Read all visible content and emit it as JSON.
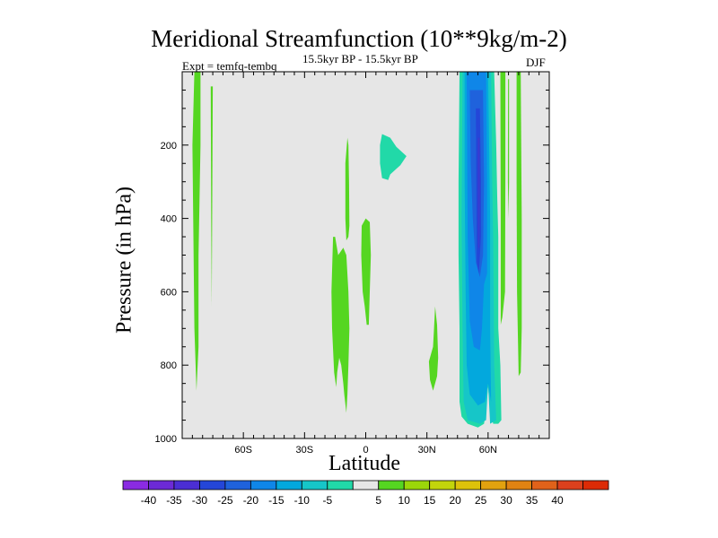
{
  "chart_data": {
    "type": "heatmap",
    "title": "Meridional Streamfunction (10**9kg/m-2)",
    "subtitle_left": "Expt = temfq-tembq",
    "subtitle_center": "15.5kyr BP - 15.5kyr BP",
    "subtitle_right": "DJF",
    "xlabel": "Latitude",
    "ylabel": "Pressure (in hPa)",
    "xlim": [
      -90,
      90
    ],
    "ylim": [
      1000,
      0
    ],
    "x_ticks": [
      {
        "value": -60,
        "label": "60S"
      },
      {
        "value": -30,
        "label": "30S"
      },
      {
        "value": 0,
        "label": "0"
      },
      {
        "value": 30,
        "label": "30N"
      },
      {
        "value": 60,
        "label": "60N"
      }
    ],
    "y_ticks": [
      {
        "value": 200,
        "label": "200"
      },
      {
        "value": 400,
        "label": "400"
      },
      {
        "value": 600,
        "label": "600"
      },
      {
        "value": 800,
        "label": "800"
      },
      {
        "value": 1000,
        "label": "1000"
      }
    ],
    "background_level": "-5 to 5",
    "contour_regions": [
      {
        "level": 7,
        "points": [
          [
            -84,
            0
          ],
          [
            -81,
            0
          ],
          [
            -81,
            200
          ],
          [
            -82,
            500
          ],
          [
            -82,
            750
          ],
          [
            -83,
            870
          ],
          [
            -84,
            700
          ],
          [
            -85,
            200
          ]
        ]
      },
      {
        "level": 7,
        "points": [
          [
            -76,
            40
          ],
          [
            -75,
            40
          ],
          [
            -75.3,
            400
          ],
          [
            -75.5,
            640
          ],
          [
            -75.8,
            400
          ]
        ]
      },
      {
        "level": 7,
        "points": [
          [
            -16,
            450
          ],
          [
            -15,
            450
          ],
          [
            -13.5,
            500
          ],
          [
            -11,
            480
          ],
          [
            -9.5,
            500
          ],
          [
            -8.5,
            600
          ],
          [
            -8,
            700
          ],
          [
            -8.5,
            800
          ],
          [
            -9,
            880
          ],
          [
            -9.5,
            930
          ],
          [
            -10.5,
            880
          ],
          [
            -11,
            850
          ],
          [
            -12,
            800
          ],
          [
            -13,
            780
          ],
          [
            -14,
            820
          ],
          [
            -14.5,
            860
          ],
          [
            -15.5,
            820
          ],
          [
            -16.5,
            700
          ],
          [
            -16.8,
            600
          ]
        ]
      },
      {
        "level": 7,
        "points": [
          [
            -9,
            180
          ],
          [
            -8.5,
            200
          ],
          [
            -8.2,
            300
          ],
          [
            -8,
            420
          ],
          [
            -8.5,
            450
          ],
          [
            -9.5,
            460
          ],
          [
            -10,
            400
          ],
          [
            -10,
            250
          ]
        ]
      },
      {
        "level": 7,
        "points": [
          [
            -2,
            420
          ],
          [
            0,
            400
          ],
          [
            2,
            410
          ],
          [
            2.5,
            500
          ],
          [
            2,
            600
          ],
          [
            1.5,
            690
          ],
          [
            0.5,
            690
          ],
          [
            -0.5,
            640
          ],
          [
            -1.5,
            600
          ],
          [
            -2.2,
            500
          ]
        ]
      },
      {
        "level": -7,
        "points": [
          [
            8,
            170
          ],
          [
            12,
            180
          ],
          [
            15,
            205
          ],
          [
            20,
            230
          ],
          [
            17,
            255
          ],
          [
            14,
            270
          ],
          [
            12,
            280
          ],
          [
            11,
            295
          ],
          [
            8,
            290
          ],
          [
            7,
            250
          ],
          [
            7,
            200
          ]
        ]
      },
      {
        "level": 7,
        "points": [
          [
            34,
            640
          ],
          [
            35,
            690
          ],
          [
            35.5,
            780
          ],
          [
            35,
            830
          ],
          [
            34,
            850
          ],
          [
            33,
            870
          ],
          [
            31.5,
            840
          ],
          [
            31,
            790
          ],
          [
            33,
            750
          ],
          [
            33.5,
            700
          ]
        ]
      },
      {
        "level": -7,
        "points": [
          [
            46,
            0
          ],
          [
            63,
            0
          ],
          [
            64,
            200
          ],
          [
            64.5,
            350
          ],
          [
            65,
            450
          ],
          [
            65,
            700
          ],
          [
            66,
            800
          ],
          [
            66.5,
            950
          ],
          [
            65,
            960
          ],
          [
            62.5,
            960
          ],
          [
            61,
            920
          ],
          [
            60,
            860
          ],
          [
            59,
            920
          ],
          [
            58,
            960
          ],
          [
            55,
            970
          ],
          [
            50,
            960
          ],
          [
            47,
            940
          ],
          [
            46,
            900
          ],
          [
            46,
            700
          ],
          [
            45.5,
            500
          ],
          [
            45.5,
            300
          ]
        ]
      },
      {
        "level": -12,
        "points": [
          [
            47.5,
            0
          ],
          [
            61.5,
            0
          ],
          [
            62,
            300
          ],
          [
            62.5,
            450
          ],
          [
            63,
            800
          ],
          [
            64,
            950
          ],
          [
            61,
            960
          ],
          [
            60,
            850
          ],
          [
            59,
            950
          ],
          [
            56,
            960
          ],
          [
            50,
            950
          ],
          [
            48,
            900
          ],
          [
            47.5,
            700
          ],
          [
            47,
            400
          ]
        ]
      },
      {
        "level": -17,
        "points": [
          [
            48.5,
            0
          ],
          [
            60,
            0
          ],
          [
            60.5,
            200
          ],
          [
            61,
            400
          ],
          [
            61,
            700
          ],
          [
            61.5,
            900
          ],
          [
            60,
            850
          ],
          [
            58.5,
            900
          ],
          [
            55,
            910
          ],
          [
            51,
            880
          ],
          [
            49.5,
            800
          ],
          [
            49,
            600
          ],
          [
            48.5,
            300
          ]
        ]
      },
      {
        "level": -22,
        "points": [
          [
            49.5,
            0
          ],
          [
            59,
            0
          ],
          [
            59.5,
            300
          ],
          [
            59.5,
            550
          ],
          [
            58,
            580
          ],
          [
            57,
            700
          ],
          [
            56,
            760
          ],
          [
            53,
            750
          ],
          [
            51,
            680
          ],
          [
            50,
            450
          ]
        ]
      },
      {
        "level": -27,
        "points": [
          [
            51,
            50
          ],
          [
            57.5,
            50
          ],
          [
            58,
            300
          ],
          [
            57.5,
            500
          ],
          [
            56,
            560
          ],
          [
            54,
            520
          ],
          [
            52.5,
            400
          ],
          [
            51.5,
            250
          ]
        ]
      },
      {
        "level": -32,
        "points": [
          [
            54,
            100
          ],
          [
            56,
            100
          ],
          [
            56.5,
            300
          ],
          [
            56.5,
            450
          ],
          [
            55.5,
            550
          ],
          [
            54.5,
            520
          ],
          [
            54.2,
            300
          ]
        ]
      },
      {
        "level": -37,
        "points": [
          [
            55,
            180
          ],
          [
            55.8,
            180
          ],
          [
            56,
            330
          ],
          [
            55.7,
            480
          ],
          [
            55.2,
            480
          ],
          [
            55,
            330
          ]
        ]
      },
      {
        "level": 7,
        "points": [
          [
            66,
            0
          ],
          [
            68.5,
            0
          ],
          [
            68.5,
            300
          ],
          [
            68.3,
            600
          ],
          [
            67,
            670
          ],
          [
            66.2,
            690
          ],
          [
            66.2,
            400
          ]
        ]
      },
      {
        "level": 7,
        "points": [
          [
            69.8,
            20
          ],
          [
            70.3,
            20
          ],
          [
            70.3,
            300
          ],
          [
            70,
            400
          ],
          [
            69.7,
            300
          ]
        ]
      },
      {
        "level": 7,
        "points": [
          [
            74,
            0
          ],
          [
            76,
            0
          ],
          [
            76.5,
            400
          ],
          [
            76.5,
            700
          ],
          [
            76,
            820
          ],
          [
            75,
            830
          ],
          [
            74.2,
            600
          ],
          [
            74,
            300
          ]
        ]
      }
    ],
    "colorbar": {
      "labels": [
        "-40",
        "-35",
        "-30",
        "-25",
        "-20",
        "-15",
        "-10",
        "-5",
        "5",
        "10",
        "15",
        "20",
        "25",
        "30",
        "35",
        "40"
      ],
      "colors": [
        "#8a2be2",
        "#6c2ad6",
        "#4b2ed4",
        "#2446d8",
        "#1f62dc",
        "#0f86e8",
        "#03a8dd",
        "#16c6c8",
        "#21d9a8",
        "#e6e6e6",
        "#55d621",
        "#9bd709",
        "#c2d50b",
        "#ddc20a",
        "#e2a20f",
        "#e08312",
        "#e0621a",
        "#dc401d",
        "#dc2b06"
      ]
    }
  }
}
